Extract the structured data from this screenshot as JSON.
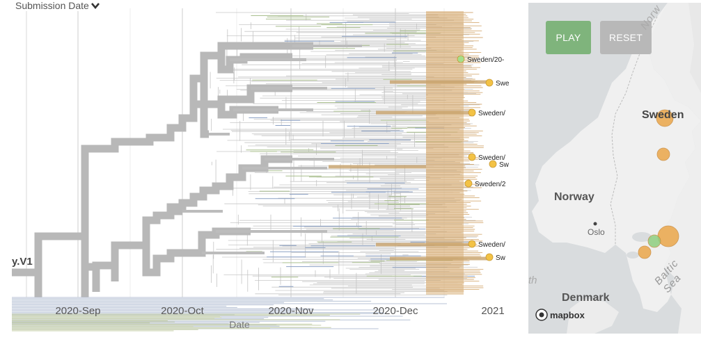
{
  "tree": {
    "sort_label": "Submission Date",
    "axis_title": "Date",
    "clade_label": "y.V1",
    "date_ticks": [
      "2020-Sep",
      "2020-Oct",
      "2020-Nov",
      "2020-Dec",
      "2021"
    ],
    "tips": [
      {
        "label": "Sweden/20-",
        "color": "#a6de8c"
      },
      {
        "label": "Swe",
        "color": "#f3c245"
      },
      {
        "label": "Sweden/",
        "color": "#f3c245"
      },
      {
        "label": "Sweden/",
        "color": "#f3c245"
      },
      {
        "label": "Sw",
        "color": "#f3c245"
      },
      {
        "label": "Sweden/2",
        "color": "#f3c245"
      },
      {
        "label": "Sweden/",
        "color": "#f3c245"
      },
      {
        "label": "Sw",
        "color": "#f3c245"
      }
    ],
    "colors": {
      "branch": "#b8b8b8",
      "highlight": "#d6ad78",
      "blue": "#8aa0c4",
      "green": "#a9bf8e"
    }
  },
  "map": {
    "play_label": "PLAY",
    "reset_label": "RESET",
    "labels": {
      "sweden": "Sweden",
      "norway": "Norway",
      "oslo": "Oslo",
      "denmark": "Denmark",
      "baltic": "Baltic Sea",
      "norwegian_sea": "Norw",
      "north_sea": "th"
    },
    "logo": "mapbox",
    "colors": {
      "land": "#eeeeee",
      "water": "#d9dcde",
      "orange": "#eba74a",
      "green": "#8fcf80"
    }
  }
}
